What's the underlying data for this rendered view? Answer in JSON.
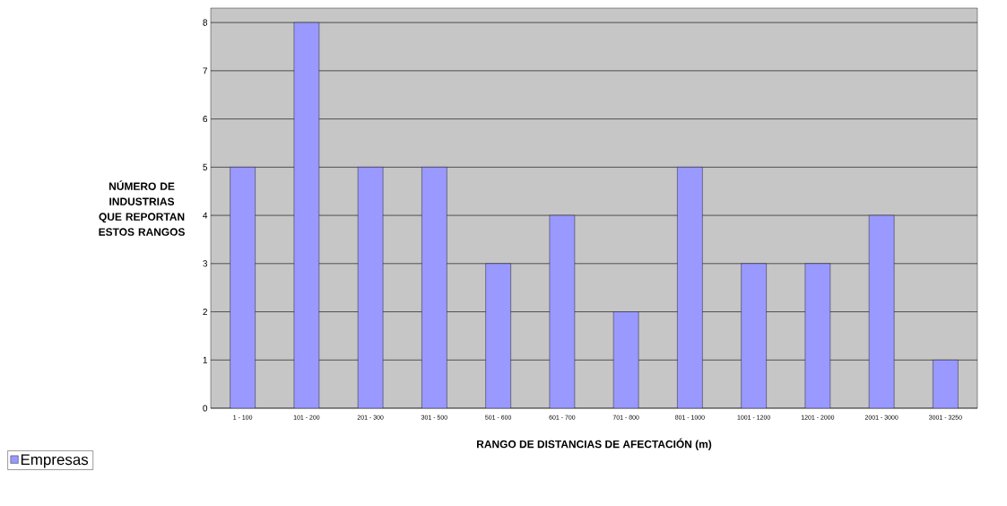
{
  "chart_data": {
    "type": "bar",
    "xlabel": "RANGO DE DISTANCIAS DE AFECTACIÓN (m)",
    "ylabel": "NÚMERO DE INDUSTRIAS QUE REPORTAN ESTOS RANGOS",
    "categories": [
      "1 - 100",
      "101 - 200",
      "201 - 300",
      "301 - 500",
      "501 - 600",
      "601 - 700",
      "701 - 800",
      "801 - 1000",
      "1001 - 1200",
      "1201 - 2000",
      "2001 - 3000",
      "3001 - 3250"
    ],
    "series": [
      {
        "name": "Empresas",
        "color": "#9999ff",
        "values": [
          5,
          8,
          5,
          5,
          3,
          4,
          2,
          5,
          3,
          3,
          4,
          1
        ]
      }
    ],
    "ylim": [
      0,
      8.3
    ],
    "yticks": [
      0,
      1,
      2,
      3,
      4,
      5,
      6,
      7,
      8
    ],
    "grid": "y",
    "legend": "bottom left"
  }
}
